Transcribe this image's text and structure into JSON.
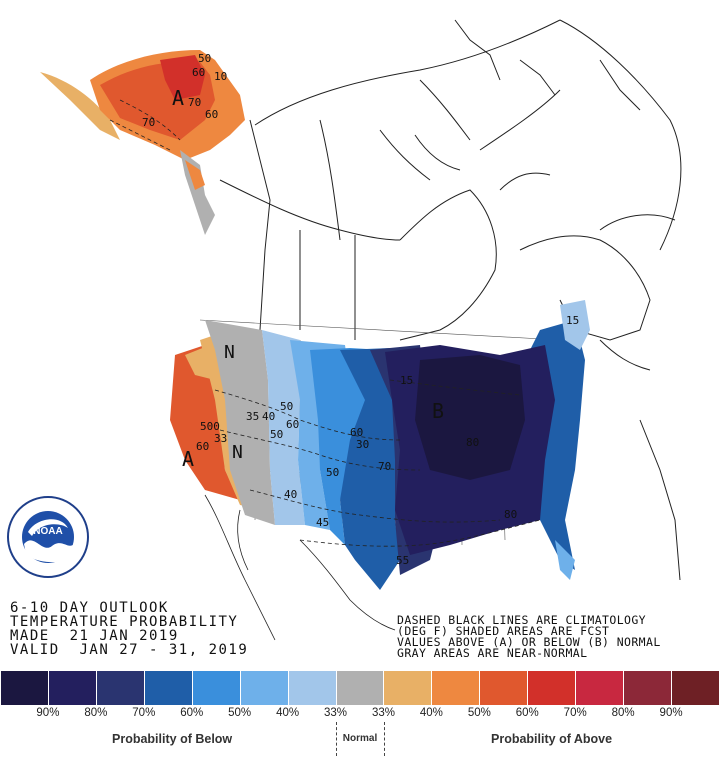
{
  "title_lines": [
    "6-10 DAY OUTLOOK",
    "TEMPERATURE PROBABILITY",
    "MADE  21 JAN 2019",
    "VALID  JAN 27 - 31, 2019"
  ],
  "notes": [
    "DASHED BLACK LINES ARE CLIMATOLOGY",
    "(DEG F) SHADED AREAS ARE FCST",
    "VALUES ABOVE (A) OR BELOW (B) NORMAL",
    "GRAY AREAS ARE NEAR-NORMAL"
  ],
  "logo_text": "NOAA",
  "logo_ring_text": "NATIONAL OCEANIC AND ATMOSPHERIC ADMINISTRATION · U.S. DEPARTMENT OF COMMERCE",
  "map_labels": {
    "alaska_a": "A",
    "west_n": "N",
    "nevada_n": "N",
    "california_a": "A",
    "central_b": "B"
  },
  "contour_labels": [
    "50",
    "60",
    "10",
    "70",
    "60",
    "70",
    "35",
    "40",
    "50",
    "60",
    "50",
    "500",
    "60",
    "33",
    "40",
    "45",
    "50",
    "55",
    "60",
    "70",
    "80",
    "15",
    "15",
    "30",
    "80"
  ],
  "legend": {
    "colors": [
      "#1b1740",
      "#231f5e",
      "#2a3470",
      "#1f5ea8",
      "#3a8fdc",
      "#6eb0ea",
      "#a2c6ea",
      "#b0b0b0",
      "#e8b066",
      "#ee8840",
      "#e0582e",
      "#d2302a",
      "#c82840",
      "#8c2838",
      "#6e2025"
    ],
    "percentages": [
      "90%",
      "80%",
      "70%",
      "60%",
      "50%",
      "40%",
      "33%",
      "33%",
      "40%",
      "50%",
      "60%",
      "70%",
      "80%",
      "90%"
    ],
    "below_label": "Probability of Below",
    "normal_label": "Normal",
    "above_label": "Probability of Above"
  }
}
